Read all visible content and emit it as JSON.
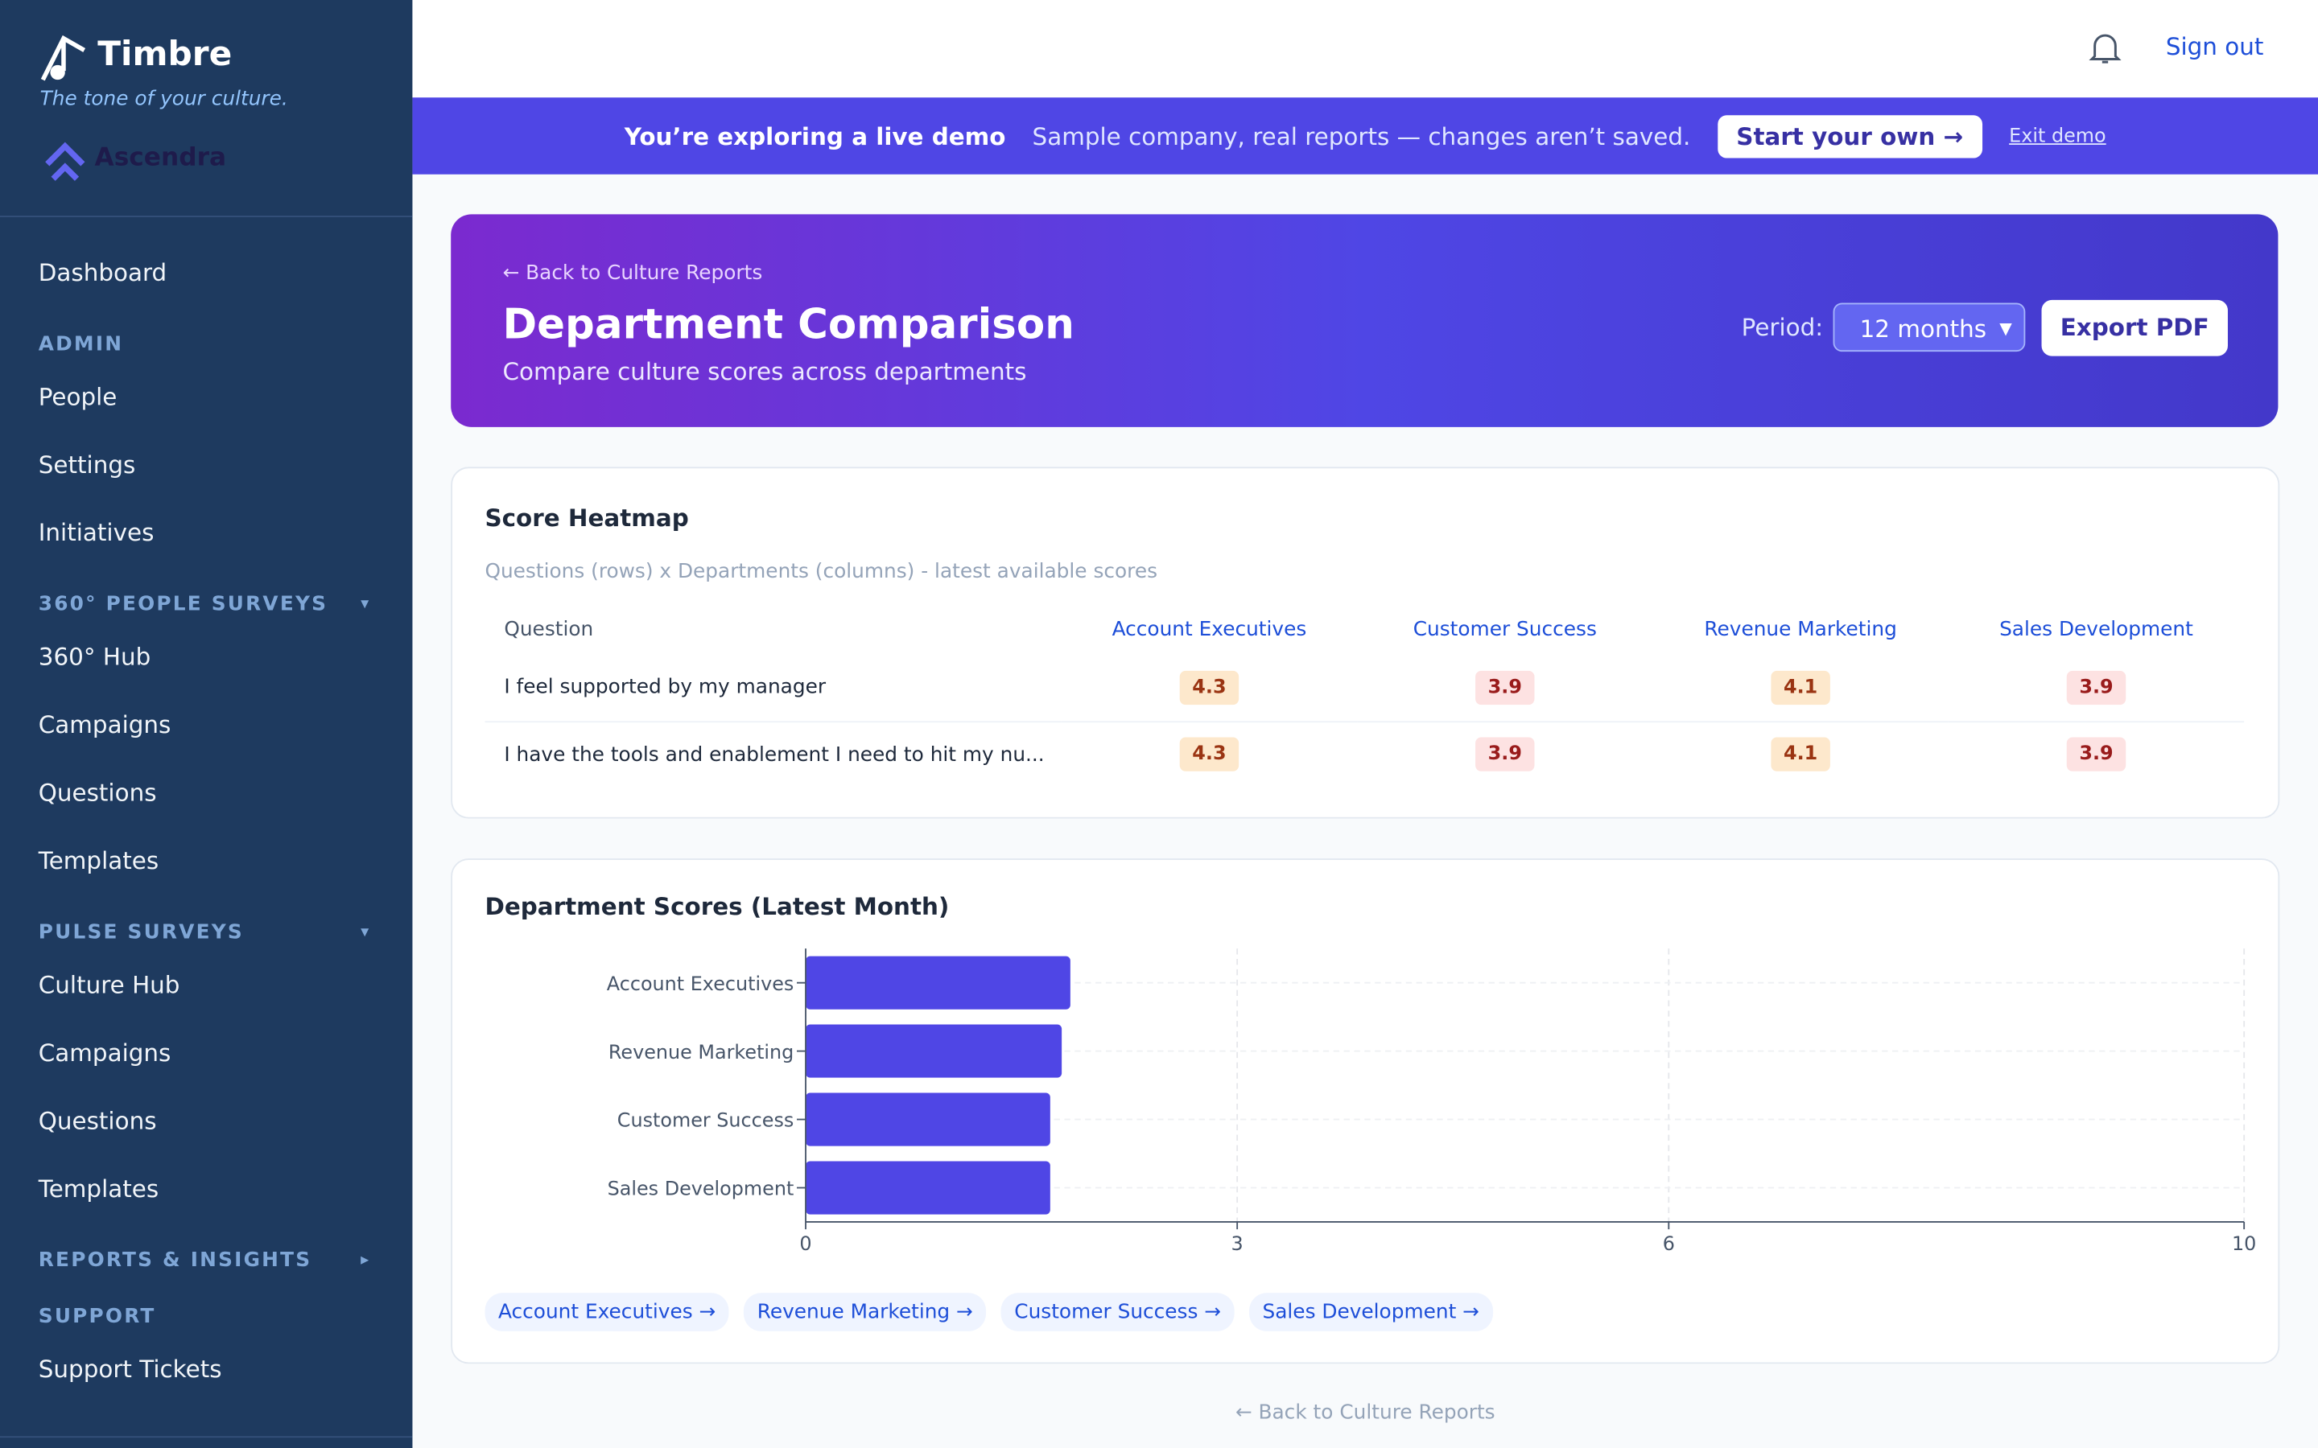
{
  "sidebar": {
    "brand": "Timbre",
    "tagline": "The tone of your culture.",
    "org": "Ascendra",
    "nav": [
      {
        "label": "Dashboard"
      },
      {
        "section": "ADMIN"
      },
      {
        "label": "People"
      },
      {
        "label": "Settings"
      },
      {
        "label": "Initiatives"
      },
      {
        "section": "360° PEOPLE SURVEYS",
        "caret": "▾"
      },
      {
        "label": "360° Hub"
      },
      {
        "label": "Campaigns"
      },
      {
        "label": "Questions"
      },
      {
        "label": "Templates"
      },
      {
        "section": "PULSE SURVEYS",
        "caret": "▾"
      },
      {
        "label": "Culture Hub"
      },
      {
        "label": "Campaigns"
      },
      {
        "label": "Questions"
      },
      {
        "label": "Templates"
      },
      {
        "section": "REPORTS & INSIGHTS",
        "caret": "▸"
      },
      {
        "section": "SUPPORT"
      },
      {
        "label": "Support Tickets"
      }
    ]
  },
  "topbar": {
    "sign_out": "Sign out"
  },
  "banner": {
    "title": "You’re exploring a live demo",
    "text": "Sample company, real reports — changes aren’t saved.",
    "cta": "Start your own →",
    "exit": "Exit demo"
  },
  "header": {
    "back": "← Back to Culture Reports",
    "title": "Department Comparison",
    "subtitle": "Compare culture scores across departments",
    "period_label": "Period:",
    "period": "12 months",
    "export": "Export PDF"
  },
  "heatmap": {
    "title": "Score Heatmap",
    "note": "Questions (rows) x Departments (columns) - latest available scores",
    "columns": [
      "Question",
      "Account Executives",
      "Customer Success",
      "Revenue Marketing",
      "Sales Development"
    ],
    "rows": [
      {
        "question": "I feel supported by my manager",
        "values": [
          4.3,
          3.9,
          4.1,
          3.9
        ]
      },
      {
        "question": "I have the tools and enablement I need to hit my nu...",
        "values": [
          4.3,
          3.9,
          4.1,
          3.9
        ]
      }
    ]
  },
  "chart_data": {
    "type": "bar",
    "orientation": "horizontal",
    "title": "Department Scores (Latest Month)",
    "categories": [
      "Account Executives",
      "Revenue Marketing",
      "Customer Success",
      "Sales Development"
    ],
    "values": [
      1.84,
      1.78,
      1.7,
      1.7
    ],
    "color": "#4f46e5",
    "xlim": [
      0,
      10
    ],
    "xticks": [
      0,
      3,
      6,
      10
    ],
    "grid": true
  },
  "chips": [
    "Account Executives →",
    "Revenue Marketing →",
    "Customer Success →",
    "Sales Development →"
  ],
  "footer": {
    "back": "← Back to Culture Reports"
  }
}
